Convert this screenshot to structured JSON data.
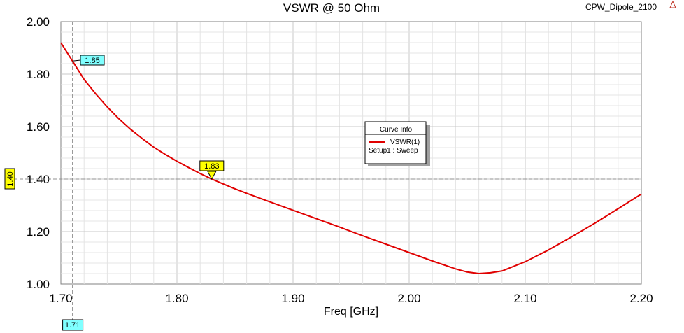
{
  "window": {
    "title": "VSWR @ 50 Ohm",
    "project": "CPW_Dipole_2100"
  },
  "legend": {
    "title": "Curve Info",
    "entries": [
      {
        "name": "VSWR(1)",
        "subtitle": "Setup1 : Sweep",
        "color": "#e00000"
      }
    ]
  },
  "markers": {
    "y_marker_label": "1.85",
    "cursor_label": "1.83",
    "x_cursor_label": "1.71",
    "y_cursor_label": "1.40",
    "colors": {
      "cyan": "#80ffff",
      "yellow": "#ffff00"
    }
  },
  "chart_data": {
    "type": "line",
    "title": "VSWR @ 50 Ohm",
    "xlabel": "Freq [GHz]",
    "ylabel": "",
    "xlim": [
      1.7,
      2.2
    ],
    "ylim": [
      1.0,
      2.0
    ],
    "x_ticks": [
      "1.70",
      "1.80",
      "1.90",
      "2.00",
      "2.10",
      "2.20"
    ],
    "y_ticks": [
      "1.00",
      "1.20",
      "1.40",
      "1.60",
      "1.80",
      "2.00"
    ],
    "grid": true,
    "legend_position": "center",
    "series": [
      {
        "name": "VSWR(1)",
        "color": "#e00000",
        "x": [
          1.7,
          1.71,
          1.72,
          1.73,
          1.74,
          1.75,
          1.76,
          1.77,
          1.78,
          1.79,
          1.8,
          1.81,
          1.82,
          1.83,
          1.84,
          1.85,
          1.86,
          1.88,
          1.9,
          1.92,
          1.94,
          1.96,
          1.98,
          2.0,
          2.02,
          2.04,
          2.05,
          2.06,
          2.07,
          2.08,
          2.1,
          2.12,
          2.14,
          2.16,
          2.18,
          2.2
        ],
        "y": [
          1.92,
          1.85,
          1.78,
          1.725,
          1.675,
          1.63,
          1.59,
          1.555,
          1.522,
          1.494,
          1.468,
          1.444,
          1.421,
          1.4,
          1.381,
          1.363,
          1.346,
          1.313,
          1.281,
          1.249,
          1.217,
          1.184,
          1.152,
          1.12,
          1.088,
          1.058,
          1.046,
          1.04,
          1.043,
          1.05,
          1.085,
          1.13,
          1.18,
          1.232,
          1.287,
          1.343
        ]
      }
    ],
    "markers": [
      {
        "x": 1.71,
        "y": 1.85,
        "label": "1.85"
      },
      {
        "x": 1.83,
        "y": 1.4,
        "label": "1.83"
      }
    ],
    "cursors": {
      "x": 1.71,
      "y": 1.4
    }
  }
}
